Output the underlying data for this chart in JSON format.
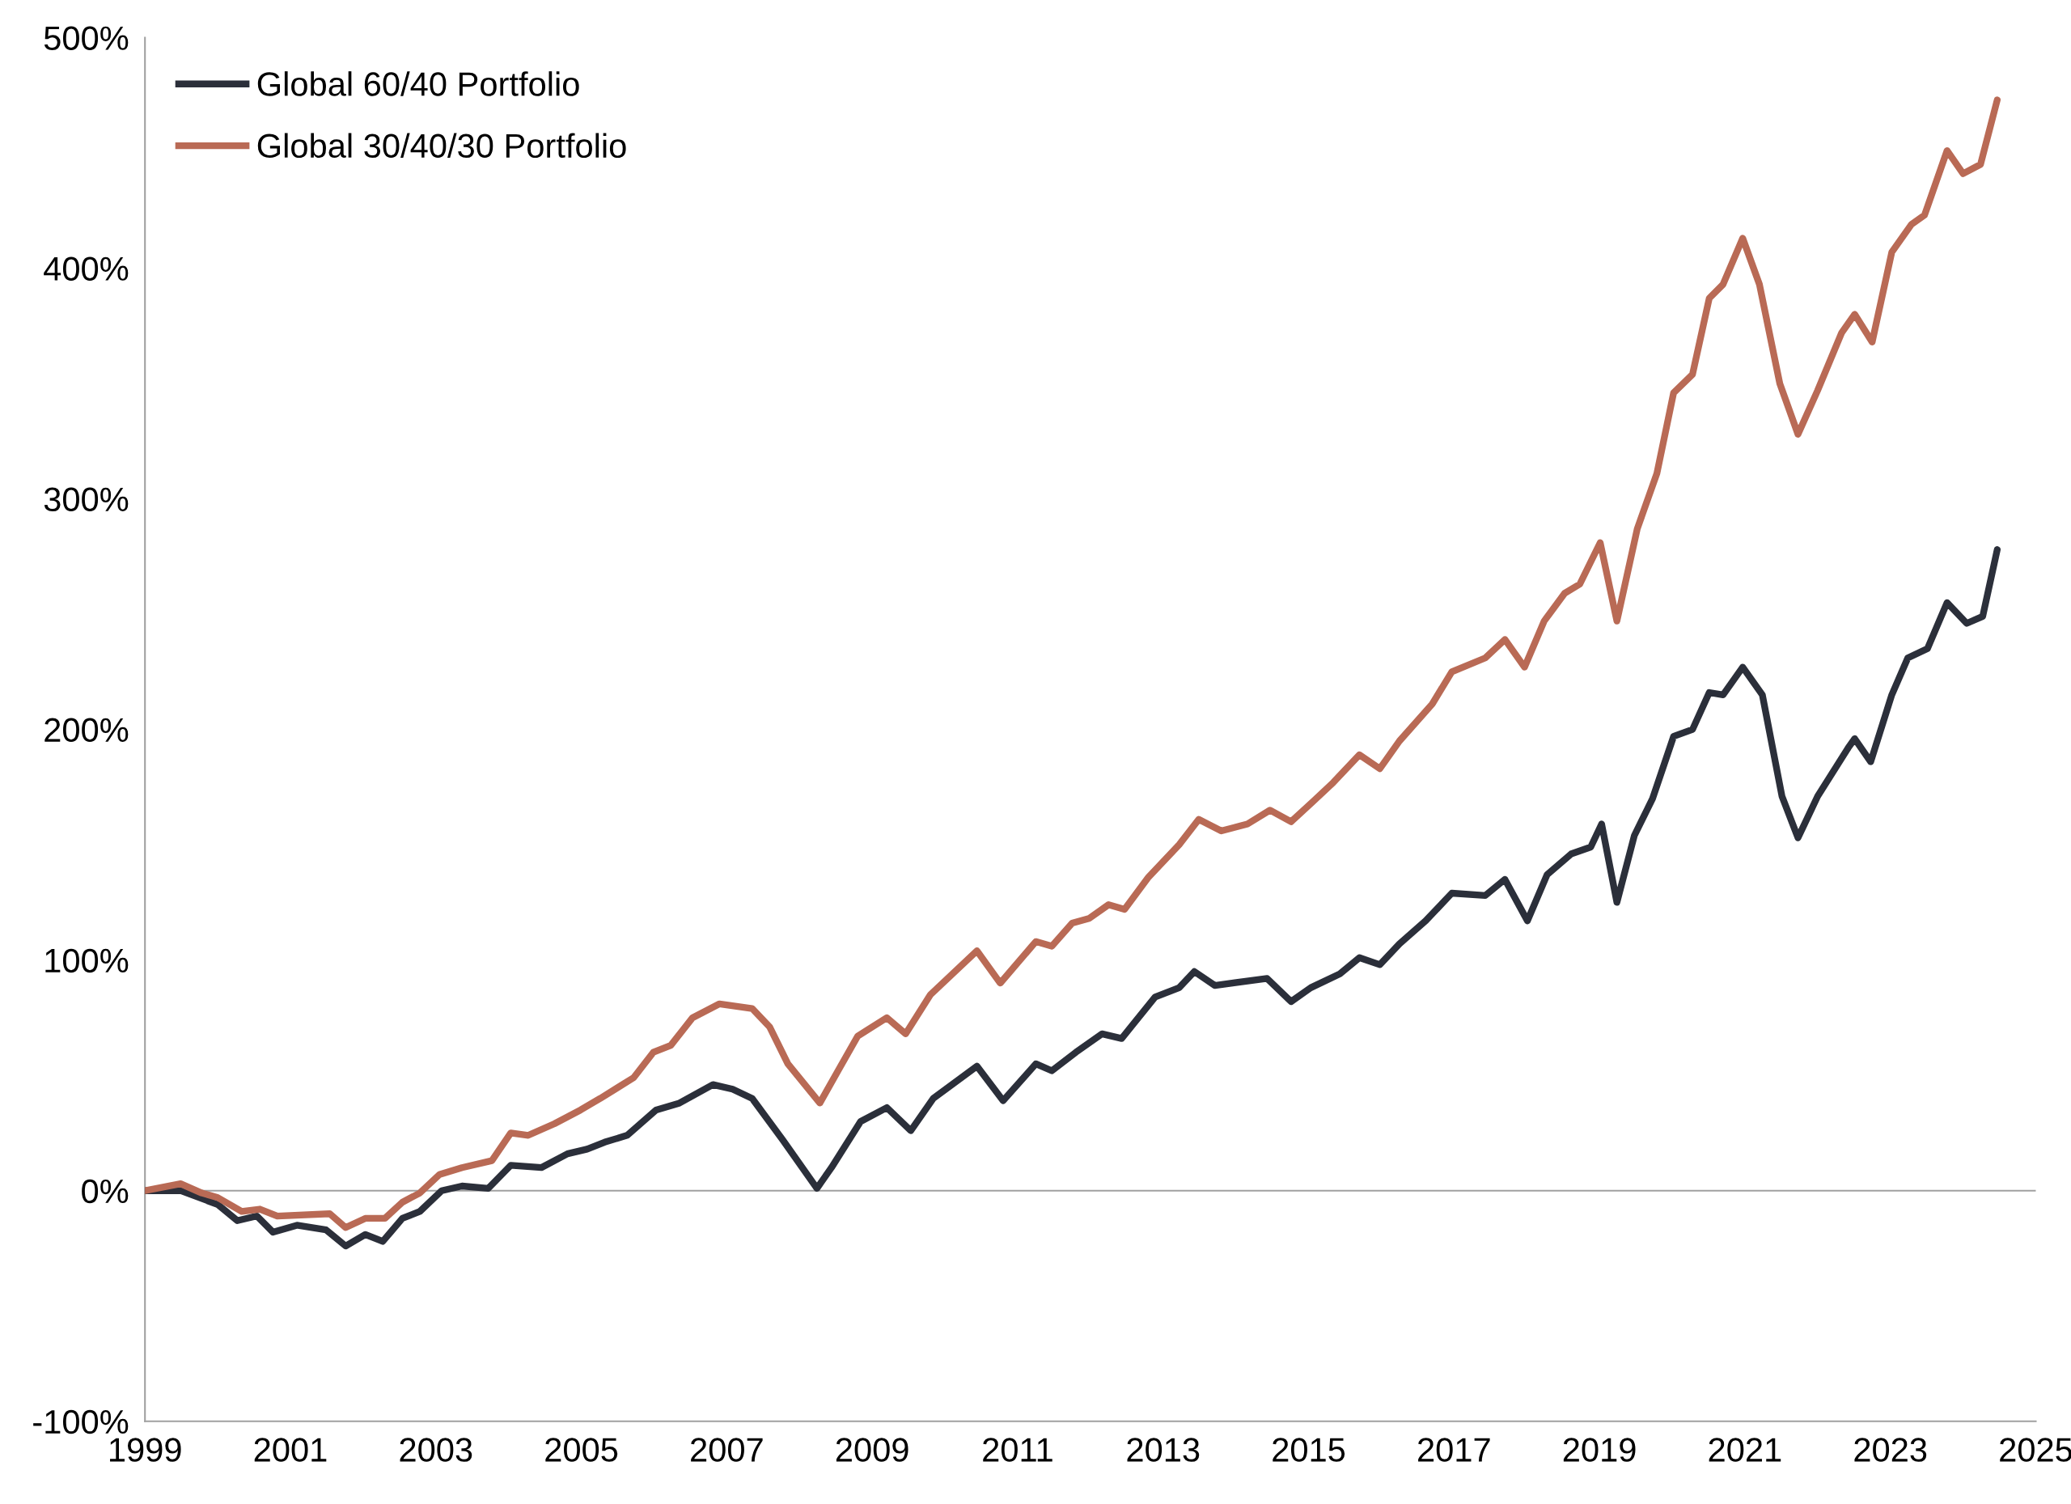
{
  "chart_data": {
    "type": "line",
    "xlim": [
      1999,
      2025
    ],
    "xticks": [
      1999,
      2001,
      2003,
      2005,
      2007,
      2009,
      2011,
      2013,
      2015,
      2017,
      2019,
      2021,
      2023,
      2025
    ],
    "ylim": [
      -100,
      500
    ],
    "yticks": [
      {
        "value": -100,
        "label": "-100%"
      },
      {
        "value": 0,
        "label": "0%"
      },
      {
        "value": 100,
        "label": "100%"
      },
      {
        "value": 200,
        "label": "200%"
      },
      {
        "value": 300,
        "label": "300%"
      },
      {
        "value": 400,
        "label": "400%"
      },
      {
        "value": 500,
        "label": "500%"
      }
    ],
    "grid": false,
    "legend": "top left",
    "line_style": "solid",
    "marker": "none",
    "ref_lines": [
      {
        "axis": "y",
        "value": 0,
        "label": null,
        "color": "#a0a0a0"
      }
    ],
    "series": [
      {
        "name": "Global 60/40 Portfolio",
        "color": "#2b2f3a",
        "x": [
          1999.0,
          1999.49,
          2000.0,
          2000.27,
          2000.54,
          2000.76,
          2001.09,
          2001.49,
          2001.76,
          2002.03,
          2002.27,
          2002.54,
          2002.78,
          2003.08,
          2003.36,
          2003.72,
          2004.03,
          2004.45,
          2004.81,
          2005.08,
          2005.32,
          2005.63,
          2006.03,
          2006.35,
          2006.81,
          2007.08,
          2007.35,
          2007.77,
          2008.24,
          2008.44,
          2008.84,
          2009.2,
          2009.53,
          2009.84,
          2010.44,
          2010.8,
          2011.25,
          2011.47,
          2011.8,
          2012.16,
          2012.43,
          2012.89,
          2013.22,
          2013.43,
          2013.71,
          2014.43,
          2014.76,
          2015.03,
          2015.43,
          2015.7,
          2015.98,
          2016.25,
          2016.61,
          2016.97,
          2017.43,
          2017.7,
          2018.01,
          2018.28,
          2018.61,
          2018.88,
          2019.03,
          2019.24,
          2019.48,
          2019.73,
          2020.02,
          2020.28,
          2020.51,
          2020.7,
          2020.97,
          2021.24,
          2021.51,
          2021.73,
          2022.0,
          2022.42,
          2022.51,
          2022.73,
          2023.02,
          2023.24,
          2023.51,
          2023.78,
          2024.05,
          2024.27,
          2024.47
        ],
        "values": [
          0,
          0,
          -6,
          -13,
          -11,
          -18,
          -15,
          -17,
          -24,
          -19,
          -22,
          -12,
          -9,
          0,
          2,
          1,
          11,
          10,
          16,
          18,
          21,
          24,
          35,
          38,
          46,
          44,
          40,
          22,
          1,
          10,
          30,
          36,
          26,
          40,
          54,
          39,
          55,
          52,
          60,
          68,
          66,
          84,
          88,
          95,
          89,
          92,
          82,
          88,
          94,
          101,
          98,
          107,
          117,
          129,
          128,
          135,
          117,
          137,
          146,
          149,
          159,
          125,
          154,
          170,
          197,
          200,
          216,
          215,
          227,
          215,
          171,
          153,
          171,
          192,
          196,
          186,
          215,
          231,
          235,
          255,
          246,
          249,
          278
        ]
      },
      {
        "name": "Global 30/40/30 Portfolio",
        "color": "#b96a55",
        "x": [
          1999.0,
          1999.49,
          1999.78,
          2000.0,
          2000.33,
          2000.58,
          2000.82,
          2001.54,
          2001.76,
          2002.03,
          2002.3,
          2002.54,
          2002.78,
          2003.05,
          2003.36,
          2003.77,
          2004.03,
          2004.27,
          2004.63,
          2004.99,
          2005.26,
          2005.72,
          2005.99,
          2006.23,
          2006.53,
          2006.9,
          2007.35,
          2007.59,
          2007.84,
          2008.28,
          2008.53,
          2008.8,
          2009.2,
          2009.46,
          2009.8,
          2010.44,
          2010.76,
          2011.25,
          2011.47,
          2011.75,
          2011.98,
          2012.25,
          2012.47,
          2012.8,
          2013.22,
          2013.49,
          2013.8,
          2014.16,
          2014.47,
          2014.76,
          2015.07,
          2015.34,
          2015.7,
          2015.98,
          2016.25,
          2016.7,
          2016.97,
          2017.43,
          2017.7,
          2017.97,
          2018.24,
          2018.52,
          2018.73,
          2019.01,
          2019.24,
          2019.52,
          2019.79,
          2020.02,
          2020.28,
          2020.51,
          2020.7,
          2020.97,
          2021.2,
          2021.48,
          2021.73,
          2022.0,
          2022.33,
          2022.51,
          2022.75,
          2023.02,
          2023.29,
          2023.47,
          2023.78,
          2024.0,
          2024.24,
          2024.47
        ],
        "values": [
          0,
          3,
          -1,
          -3,
          -9,
          -8,
          -11,
          -10,
          -16,
          -12,
          -12,
          -5,
          -1,
          7,
          10,
          13,
          25,
          24,
          29,
          35,
          40,
          49,
          60,
          63,
          75,
          81,
          79,
          71,
          55,
          38,
          52,
          67,
          75,
          68,
          85,
          104,
          90,
          108,
          106,
          116,
          118,
          124,
          122,
          136,
          150,
          161,
          156,
          159,
          165,
          160,
          169,
          177,
          189,
          183,
          195,
          211,
          225,
          231,
          239,
          227,
          247,
          259,
          263,
          281,
          247,
          287,
          311,
          346,
          354,
          387,
          393,
          413,
          393,
          350,
          328,
          347,
          372,
          380,
          368,
          407,
          419,
          423,
          451,
          441,
          445,
          473
        ]
      }
    ]
  }
}
